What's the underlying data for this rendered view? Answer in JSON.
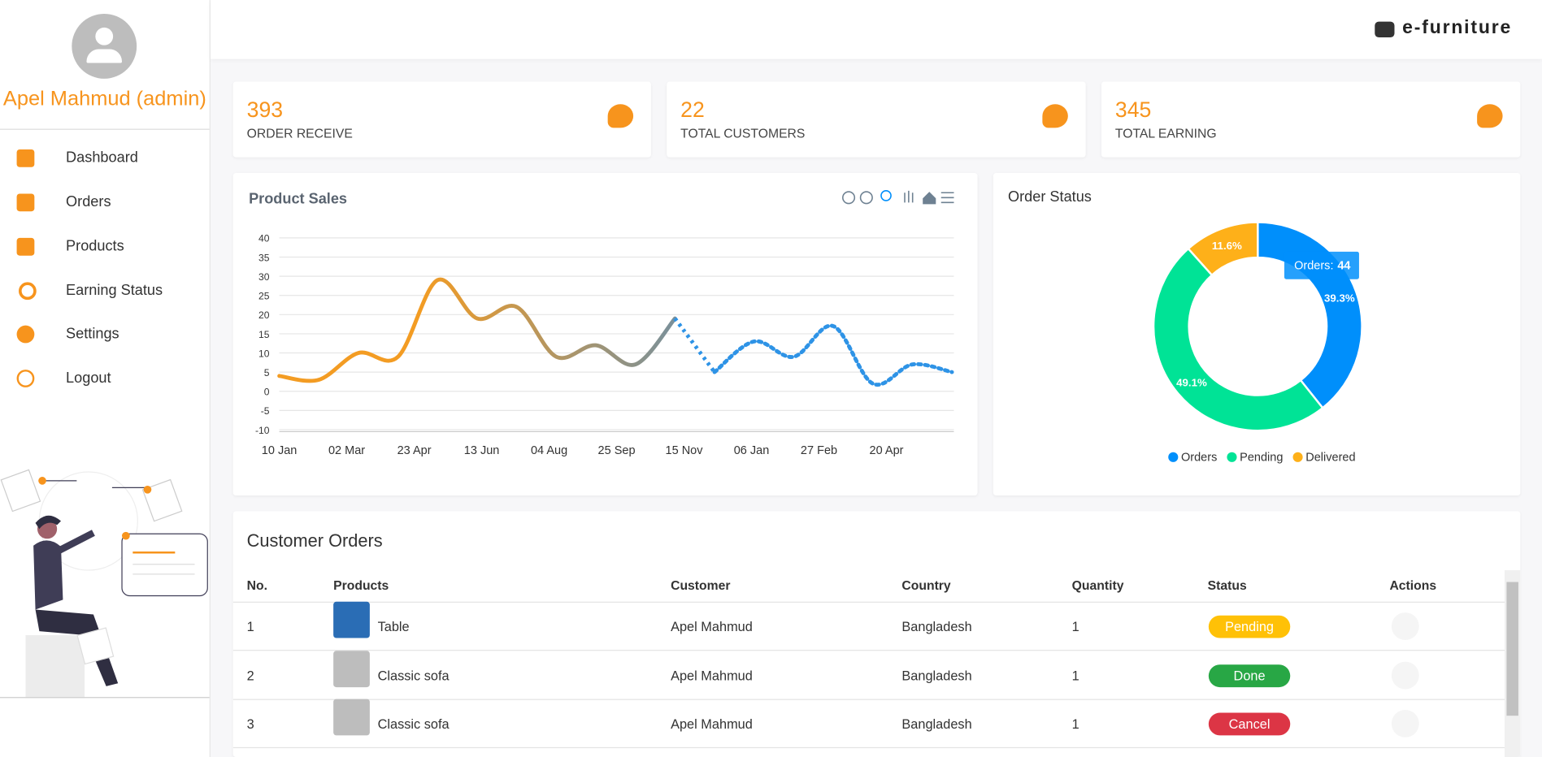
{
  "sidebar": {
    "user_name": "Apel Mahmud (admin)",
    "menu": [
      "Dashboard",
      "Orders",
      "Products",
      "Earning Status",
      "Settings",
      "Logout"
    ]
  },
  "header": {
    "brand": "e-furniture"
  },
  "stats": [
    {
      "value": 393,
      "label": "ORDER RECEIVE"
    },
    {
      "value": 22,
      "label": "TOTAL CUSTOMERS"
    },
    {
      "value": 345,
      "label": "TOTAL EARNING"
    }
  ],
  "chart_data": [
    {
      "type": "line",
      "title": "Product Sales",
      "xticks": [
        "10 Jan",
        "02 Mar",
        "23 Apr",
        "13 Jun",
        "04 Aug",
        "25 Sep",
        "15 Nov",
        "06 Jan",
        "27 Feb",
        "20 Apr"
      ],
      "values": [
        4,
        3,
        10,
        9,
        29,
        19,
        22,
        9,
        12,
        7,
        19,
        5,
        13,
        9,
        17,
        2,
        7,
        5
      ],
      "ylim": [
        -10,
        40
      ],
      "yticks": [
        -10,
        -5,
        0,
        5,
        10,
        15,
        20,
        25,
        30,
        35,
        40
      ],
      "grid": true,
      "colors": [
        "#f39c23",
        "#78909c",
        "#2e93e6"
      ]
    },
    {
      "type": "pie",
      "title": "Order Status",
      "categories": [
        "Orders",
        "Pending",
        "Delivered"
      ],
      "values": [
        39.3,
        49.1,
        11.6
      ],
      "value_labels": [
        "39.3%",
        "49.1%",
        "11.6%"
      ],
      "colors": [
        "#008ffb",
        "#00e396",
        "#feb019"
      ],
      "tooltip": {
        "label": "Orders:",
        "value": "44"
      }
    }
  ],
  "orders_table": {
    "title": "Customer Orders",
    "columns": [
      "No.",
      "Products",
      "Customer",
      "Country",
      "Quantity",
      "Status",
      "Actions"
    ],
    "rows": [
      [
        "1",
        "Table",
        "Apel Mahmud",
        "Bangladesh",
        "1",
        "Pending"
      ],
      [
        "2",
        "Classic sofa",
        "Apel Mahmud",
        "Bangladesh",
        "1",
        "Done"
      ],
      [
        "3",
        "Classic sofa",
        "Apel Mahmud",
        "Bangladesh",
        "1",
        "Cancel"
      ]
    ],
    "status_colors": [
      "#ffc107",
      "#28a745",
      "#dc3545"
    ]
  }
}
